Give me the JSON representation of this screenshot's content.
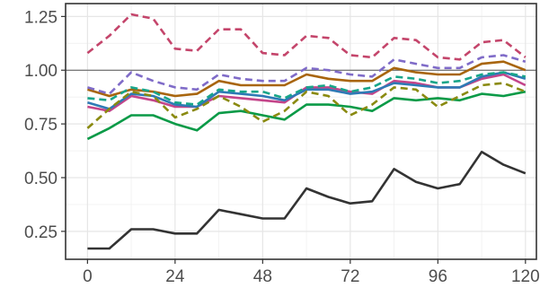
{
  "chart_data": {
    "type": "line",
    "title": "",
    "xlabel": "",
    "ylabel": "",
    "xlim": [
      -6,
      123
    ],
    "ylim": [
      0.12,
      1.31
    ],
    "x_ticks": [
      0,
      24,
      48,
      72,
      96,
      120
    ],
    "x_tick_labels": [
      "0",
      "24",
      "48",
      "72",
      "96",
      "120"
    ],
    "y_ticks": [
      0.25,
      0.5,
      0.75,
      1.0,
      1.25
    ],
    "y_tick_labels": [
      "0.25",
      "0.50",
      "0.75",
      "1.00",
      "1.25"
    ],
    "grid": true,
    "reference_line": 1.0,
    "x": [
      0,
      6,
      12,
      18,
      24,
      30,
      36,
      42,
      48,
      54,
      60,
      66,
      72,
      78,
      84,
      90,
      96,
      102,
      108,
      114,
      120
    ],
    "series": [
      {
        "color": "#333333",
        "dash": "solid",
        "values": [
          0.17,
          0.17,
          0.26,
          0.26,
          0.24,
          0.24,
          0.35,
          0.33,
          0.31,
          0.31,
          0.45,
          0.41,
          0.38,
          0.39,
          0.54,
          0.48,
          0.45,
          0.47,
          0.62,
          0.56,
          0.52
        ]
      },
      {
        "color": "#0a9a47",
        "dash": "solid",
        "values": [
          0.68,
          0.73,
          0.79,
          0.79,
          0.75,
          0.72,
          0.8,
          0.81,
          0.79,
          0.77,
          0.84,
          0.84,
          0.83,
          0.81,
          0.87,
          0.86,
          0.87,
          0.86,
          0.89,
          0.88,
          0.9
        ]
      },
      {
        "color": "#a8650d",
        "dash": "solid",
        "values": [
          0.91,
          0.88,
          0.91,
          0.9,
          0.88,
          0.89,
          0.95,
          0.93,
          0.93,
          0.93,
          0.98,
          0.96,
          0.95,
          0.95,
          1.01,
          0.99,
          0.98,
          0.98,
          1.03,
          1.04,
          1.0
        ]
      },
      {
        "color": "#c4458a",
        "dash": "solid",
        "values": [
          0.83,
          0.81,
          0.88,
          0.86,
          0.83,
          0.83,
          0.88,
          0.87,
          0.86,
          0.85,
          0.92,
          0.92,
          0.9,
          0.89,
          0.95,
          0.94,
          0.92,
          0.92,
          0.96,
          0.98,
          0.93
        ]
      },
      {
        "color": "#2e7ab5",
        "dash": "solid",
        "values": [
          0.85,
          0.82,
          0.89,
          0.88,
          0.84,
          0.83,
          0.9,
          0.89,
          0.88,
          0.86,
          0.91,
          0.91,
          0.89,
          0.9,
          0.94,
          0.93,
          0.92,
          0.92,
          0.97,
          0.99,
          0.96
        ]
      },
      {
        "color": "#c4456b",
        "dash": "dashed",
        "values": [
          1.08,
          1.16,
          1.26,
          1.24,
          1.1,
          1.09,
          1.19,
          1.19,
          1.08,
          1.07,
          1.16,
          1.15,
          1.07,
          1.06,
          1.15,
          1.14,
          1.06,
          1.05,
          1.13,
          1.14,
          1.06
        ]
      },
      {
        "color": "#7f6bc8",
        "dash": "dashed",
        "values": [
          0.92,
          0.89,
          0.99,
          0.95,
          0.92,
          0.91,
          0.98,
          0.96,
          0.95,
          0.95,
          1.01,
          1.0,
          0.98,
          0.97,
          1.05,
          1.03,
          1.01,
          1.01,
          1.06,
          1.07,
          1.04
        ]
      },
      {
        "color": "#17a589",
        "dash": "dashed",
        "values": [
          0.87,
          0.86,
          0.92,
          0.9,
          0.85,
          0.84,
          0.91,
          0.9,
          0.9,
          0.87,
          0.92,
          0.93,
          0.9,
          0.92,
          0.97,
          0.96,
          0.94,
          0.95,
          0.98,
          0.99,
          0.97
        ]
      },
      {
        "color": "#8a8a10",
        "dash": "dashed",
        "values": [
          0.73,
          0.82,
          0.9,
          0.88,
          0.78,
          0.82,
          0.88,
          0.83,
          0.76,
          0.81,
          0.9,
          0.88,
          0.79,
          0.84,
          0.92,
          0.91,
          0.83,
          0.88,
          0.93,
          0.94,
          0.9
        ]
      }
    ]
  }
}
